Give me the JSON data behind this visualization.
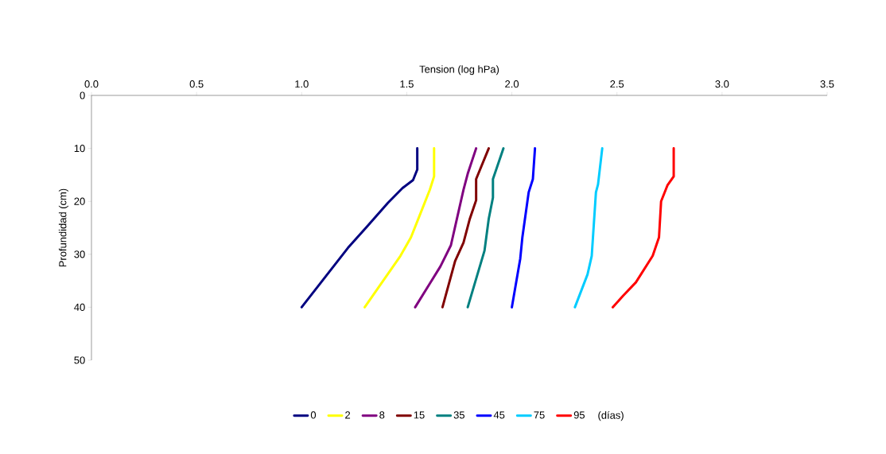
{
  "chart_data": {
    "type": "line",
    "xlabel": "Tension (log hPa)",
    "ylabel": "Profundidad (cm)",
    "legend_title": "(días)",
    "legend": "bottom",
    "grid": false,
    "marker": "none",
    "line_style": "solid",
    "xlim": [
      0,
      3.5
    ],
    "ylim": [
      50,
      0
    ],
    "xticks": [
      {
        "value": 0,
        "label": "0.0"
      },
      {
        "value": 0.5,
        "label": "0.5"
      },
      {
        "value": 1,
        "label": "1.0"
      },
      {
        "value": 1.5,
        "label": "1.5"
      },
      {
        "value": 2,
        "label": "2.0"
      },
      {
        "value": 2.5,
        "label": "2.5"
      },
      {
        "value": 3,
        "label": "3.0"
      },
      {
        "value": 3.5,
        "label": "3.5"
      }
    ],
    "yticks": [
      0,
      10,
      20,
      30,
      40,
      50
    ],
    "series": [
      {
        "name": "0",
        "color": "#000080",
        "x": [
          1.55,
          1.55,
          1.53,
          1.48,
          1.41,
          1.31,
          1.22,
          1.0
        ],
        "values": [
          10,
          14,
          16,
          17.5,
          20.3,
          24.8,
          28.8,
          40
        ]
      },
      {
        "name": "2",
        "color": "#ffff00",
        "x": [
          1.63,
          1.63,
          1.61,
          1.56,
          1.52,
          1.47,
          1.3
        ],
        "values": [
          10,
          15.3,
          17.8,
          22.8,
          26.8,
          30.3,
          40
        ]
      },
      {
        "name": "8",
        "color": "#800080",
        "x": [
          1.83,
          1.79,
          1.77,
          1.75,
          1.73,
          1.71,
          1.66,
          1.61,
          1.54
        ],
        "values": [
          10,
          14.8,
          17.8,
          21.3,
          24.8,
          28.3,
          32.3,
          35.5,
          40
        ]
      },
      {
        "name": "15",
        "color": "#800000",
        "x": [
          1.89,
          1.83,
          1.83,
          1.8,
          1.77,
          1.73,
          1.67
        ],
        "values": [
          10,
          15.8,
          19.8,
          23.3,
          27.8,
          31.3,
          40
        ]
      },
      {
        "name": "35",
        "color": "#008080",
        "x": [
          1.96,
          1.91,
          1.91,
          1.89,
          1.87,
          1.79
        ],
        "values": [
          10,
          15.8,
          19.3,
          23.3,
          29.3,
          40
        ]
      },
      {
        "name": "45",
        "color": "#0000ff",
        "x": [
          2.11,
          2.1,
          2.08,
          2.05,
          2.04,
          2.0
        ],
        "values": [
          10,
          15.8,
          18.3,
          26.8,
          30.8,
          40
        ]
      },
      {
        "name": "75",
        "color": "#00ccff",
        "x": [
          2.43,
          2.41,
          2.4,
          2.38,
          2.36,
          2.3
        ],
        "values": [
          10,
          16.8,
          18.3,
          30.3,
          33.8,
          40
        ]
      },
      {
        "name": "95",
        "color": "#ff0000",
        "x": [
          2.77,
          2.77,
          2.74,
          2.71,
          2.7,
          2.67,
          2.59,
          2.53,
          2.48
        ],
        "values": [
          10,
          15.3,
          17,
          20,
          26.8,
          30.3,
          35.3,
          37.8,
          40
        ]
      }
    ]
  }
}
